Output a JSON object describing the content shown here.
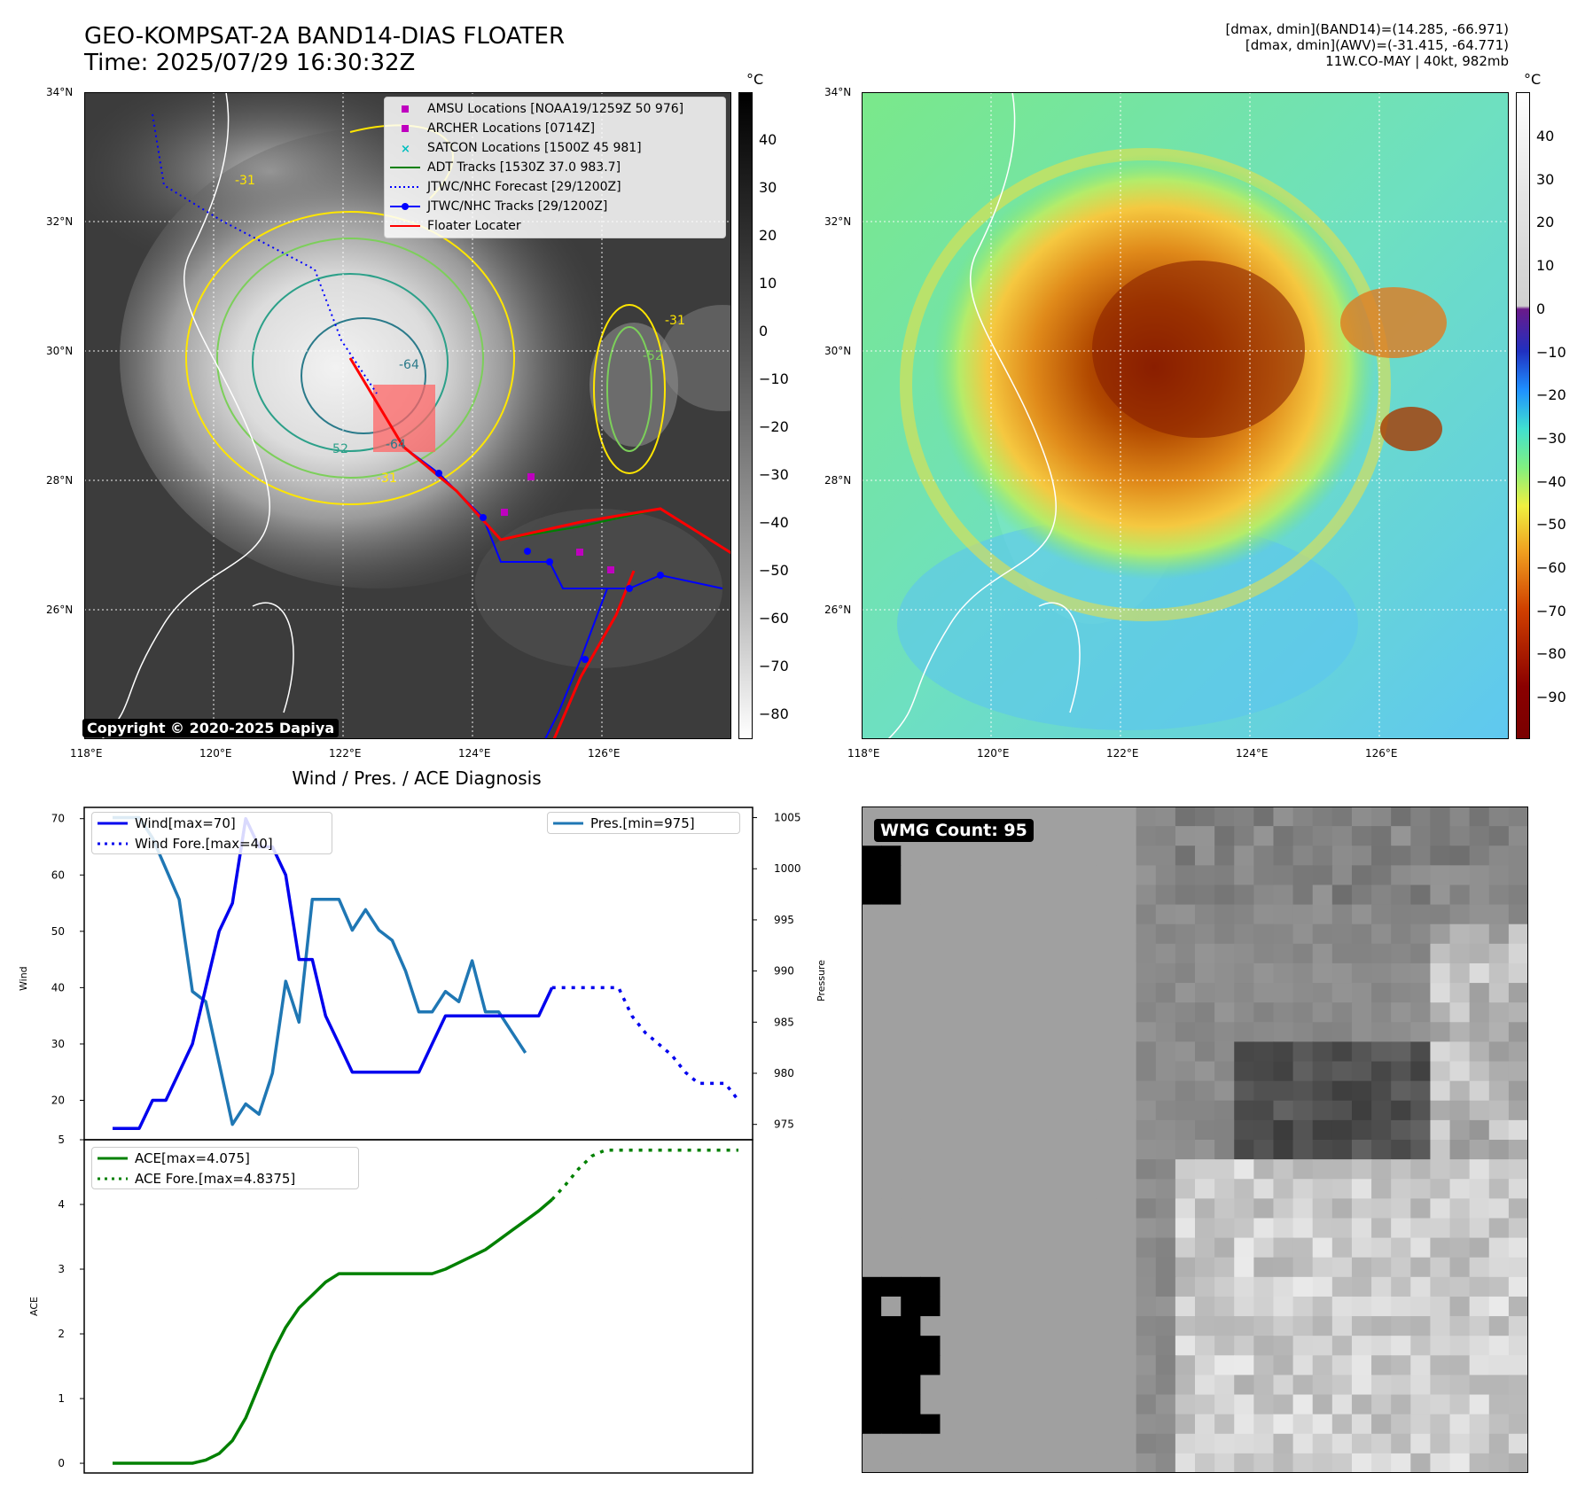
{
  "header": {
    "title_line1": "GEO-KOMPSAT-2A BAND14-DIAS FLOATER",
    "title_line2": "Time: 2025/07/29 16:30:32Z",
    "info_line1": "[dmax, dmin](BAND14)=(14.285, -66.971)",
    "info_line2": "[dmax, dmin](AWV)=(-31.415, -64.771)",
    "info_line3": "11W.CO-MAY | 40kt, 982mb"
  },
  "map_axes": {
    "lat_labels": [
      "34°N",
      "32°N",
      "30°N",
      "28°N",
      "26°N"
    ],
    "lon_labels": [
      "118°E",
      "120°E",
      "122°E",
      "124°E",
      "126°E"
    ]
  },
  "ir_panel": {
    "copyright": "Copyright © 2020-2025 Dapiya",
    "colorbar_unit": "°C",
    "colorbar_ticks": [
      "40",
      "30",
      "20",
      "10",
      "0",
      "−10",
      "−20",
      "−30",
      "−40",
      "−50",
      "−60",
      "−70",
      "−80"
    ],
    "contour_labels": [
      "-31",
      "-31",
      "-52",
      "-64",
      "-64",
      "-52",
      "-31"
    ],
    "legend": [
      {
        "label": "AMSU Locations [NOAA19/1259Z 50 976]",
        "symbol": "square",
        "color": "#bf00bf"
      },
      {
        "label": "ARCHER Locations [0714Z]",
        "symbol": "square",
        "color": "#bf00bf"
      },
      {
        "label": "SATCON Locations [1500Z 45 981]",
        "symbol": "x",
        "color": "#00bfbf"
      },
      {
        "label": "ADT Tracks [1530Z 37.0 983.7]",
        "symbol": "line",
        "color": "#008000"
      },
      {
        "label": "JTWC/NHC Forecast [29/1200Z]",
        "symbol": "dotted",
        "color": "#0000ff"
      },
      {
        "label": "JTWC/NHC Tracks [29/1200Z]",
        "symbol": "dotline",
        "color": "#0000ff"
      },
      {
        "label": "Floater Locater",
        "symbol": "line",
        "color": "#ff0000"
      }
    ]
  },
  "awv_panel": {
    "colorbar_unit": "°C",
    "colorbar_ticks": [
      "40",
      "30",
      "20",
      "10",
      "0",
      "−10",
      "−20",
      "−30",
      "−40",
      "−50",
      "−60",
      "−70",
      "−80",
      "−90"
    ]
  },
  "diag_panel": {
    "title": "Wind / Pres. / ACE Diagnosis",
    "wind_ylabel": "Wind",
    "pres_ylabel": "Pressure",
    "ace_ylabel": "ACE",
    "legend_wind": "Wind[max=70]",
    "legend_wind_fore": "Wind Fore.[max=40]",
    "legend_pres": "Pres.[min=975]",
    "legend_ace": "ACE[max=4.075]",
    "legend_ace_fore": "ACE Fore.[max=4.8375]"
  },
  "wmg_panel": {
    "label": "WMG Count: 95"
  },
  "colors": {
    "wind": "#0000ee",
    "pressure": "#1f77b4",
    "ace": "#008000"
  },
  "chart_data": [
    {
      "type": "line",
      "title": "Wind / Pres. / ACE Diagnosis",
      "ylabel": "Wind",
      "ylim": [
        13,
        72
      ],
      "yticks": [
        20,
        30,
        40,
        50,
        60,
        70
      ],
      "series": [
        {
          "name": "Wind[max=70]",
          "x": [
            0,
            1,
            2,
            3,
            4,
            5,
            6,
            7,
            8,
            9,
            10,
            11,
            12,
            13,
            14,
            15,
            16,
            17,
            18,
            19,
            20,
            21,
            22,
            23,
            24,
            25,
            26,
            27,
            28,
            29,
            30,
            31,
            32,
            33,
            34,
            35,
            36
          ],
          "values": [
            15,
            15,
            15,
            20,
            20,
            25,
            30,
            40,
            50,
            55,
            70,
            65,
            65,
            60,
            45,
            45,
            35,
            30,
            25,
            25,
            25,
            25,
            25,
            25,
            30,
            35,
            35,
            35,
            35,
            35,
            35,
            35,
            35,
            40,
            null,
            null,
            null
          ]
        },
        {
          "name": "Wind Fore.[max=40]",
          "x": [
            33,
            34,
            35,
            36,
            37,
            38,
            39,
            40,
            41,
            42,
            43,
            44,
            45,
            46,
            47
          ],
          "values": [
            40,
            40,
            40,
            40,
            40,
            40,
            35,
            32,
            30,
            28,
            25,
            23,
            23,
            23,
            20
          ]
        }
      ]
    },
    {
      "type": "line",
      "ylabel": "Pressure",
      "ylim": [
        973.5,
        1006
      ],
      "yticks": [
        975,
        980,
        985,
        990,
        995,
        1000,
        1005
      ],
      "series": [
        {
          "name": "Pres.[min=975]",
          "x": [
            0,
            1,
            2,
            3,
            4,
            5,
            6,
            7,
            8,
            9,
            10,
            11,
            12,
            13,
            14,
            15,
            16,
            17,
            18,
            19,
            20,
            21,
            22,
            23,
            24,
            25,
            26,
            27,
            28,
            29,
            30,
            31,
            32,
            33
          ],
          "values": [
            1005,
            1005,
            1005,
            1003,
            1000,
            997,
            988,
            987,
            981,
            975,
            977,
            976,
            980,
            989,
            985,
            997,
            997,
            997,
            994,
            996,
            994,
            993,
            990,
            986,
            986,
            988,
            987,
            991,
            986,
            986,
            984,
            982,
            null,
            null
          ]
        }
      ]
    },
    {
      "type": "line",
      "ylabel": "ACE",
      "ylim": [
        -0.15,
        5
      ],
      "yticks": [
        0,
        1,
        2,
        3,
        4,
        5
      ],
      "series": [
        {
          "name": "ACE[max=4.075]",
          "x": [
            0,
            1,
            2,
            3,
            4,
            5,
            6,
            7,
            8,
            9,
            10,
            11,
            12,
            13,
            14,
            15,
            16,
            17,
            18,
            19,
            20,
            21,
            22,
            23,
            24,
            25,
            26,
            27,
            28,
            29,
            30,
            31,
            32,
            33
          ],
          "values": [
            0,
            0,
            0,
            0,
            0,
            0,
            0,
            0.05,
            0.15,
            0.35,
            0.7,
            1.2,
            1.7,
            2.1,
            2.4,
            2.6,
            2.8,
            2.93,
            2.93,
            2.93,
            2.93,
            2.93,
            2.93,
            2.93,
            2.93,
            3.0,
            3.1,
            3.2,
            3.3,
            3.45,
            3.6,
            3.75,
            3.9,
            4.075
          ]
        },
        {
          "name": "ACE Fore.[max=4.8375]",
          "x": [
            33,
            34,
            35,
            36,
            37,
            38,
            39,
            40,
            41,
            42,
            43,
            44,
            45,
            46,
            47
          ],
          "values": [
            4.075,
            4.3,
            4.55,
            4.75,
            4.84,
            4.84,
            4.84,
            4.84,
            4.84,
            4.84,
            4.84,
            4.84,
            4.84,
            4.84,
            4.84
          ]
        }
      ]
    }
  ]
}
